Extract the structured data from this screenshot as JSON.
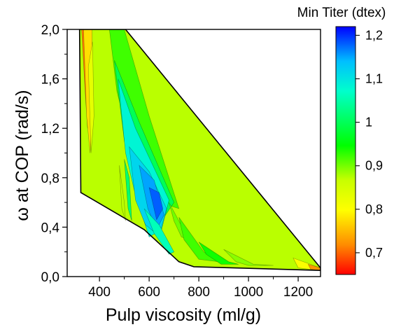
{
  "chart_data": {
    "type": "contour",
    "xlabel": "Pulp viscosity (ml/g)",
    "ylabel": "ω at COP (rad/s)",
    "colorbar_title": "Min Titer (dtex)",
    "xlim": [
      270,
      1290
    ],
    "ylim": [
      0.0,
      2.0
    ],
    "xticks": [
      400,
      600,
      800,
      1000,
      1200
    ],
    "xtick_labels": [
      "400",
      "600",
      "800",
      "1000",
      "1200"
    ],
    "yticks": [
      0.0,
      0.4,
      0.8,
      1.2,
      1.6,
      2.0
    ],
    "ytick_labels": [
      "0,0",
      "0,4",
      "0,8",
      "1,2",
      "1,6",
      "2,0"
    ],
    "colorbar_range": [
      0.65,
      1.22
    ],
    "colorbar_ticks": [
      0.7,
      0.8,
      0.9,
      1.0,
      1.1,
      1.2
    ],
    "colorbar_tick_labels": [
      "0,7",
      "0,8",
      "0,9",
      "1",
      "1,1",
      "1,2"
    ],
    "colorscale": [
      "#0000ff",
      "#00bfff",
      "#00ffcc",
      "#00ff00",
      "#c8ff00",
      "#ffff00",
      "#ff8c00",
      "#ff0000"
    ],
    "hull": [
      [
        320,
        2.0
      ],
      [
        505,
        2.0
      ],
      [
        1290,
        0.07
      ],
      [
        1290,
        0.05
      ],
      [
        780,
        0.08
      ],
      [
        720,
        0.12
      ],
      [
        580,
        0.38
      ],
      [
        325,
        0.68
      ]
    ],
    "regions": [
      {
        "level": 1.15,
        "polygon": [
          [
            328,
            2.0
          ],
          [
            355,
            2.0
          ],
          [
            360,
            1.6
          ],
          [
            352,
            1.2
          ],
          [
            342,
            1.5
          ]
        ]
      },
      {
        "level": 1.08,
        "polygon": [
          [
            336,
            2.0
          ],
          [
            370,
            2.0
          ],
          [
            372,
            1.4
          ],
          [
            362,
            1.0
          ],
          [
            348,
            1.3
          ]
        ]
      },
      {
        "level": 1.02,
        "polygon": [
          [
            355,
            1.7
          ],
          [
            372,
            1.9
          ],
          [
            378,
            1.3
          ],
          [
            366,
            1.0
          ]
        ]
      },
      {
        "level": 0.92,
        "polygon": [
          [
            440,
            2.0
          ],
          [
            500,
            2.0
          ],
          [
            600,
            1.3
          ],
          [
            720,
            0.55
          ],
          [
            640,
            0.6
          ],
          [
            520,
            1.1
          ],
          [
            470,
            1.5
          ]
        ]
      },
      {
        "level": 0.86,
        "polygon": [
          [
            460,
            1.75
          ],
          [
            560,
            1.25
          ],
          [
            700,
            0.6
          ],
          [
            640,
            0.42
          ],
          [
            560,
            0.65
          ],
          [
            500,
            1.1
          ]
        ]
      },
      {
        "level": 0.8,
        "polygon": [
          [
            475,
            1.6
          ],
          [
            545,
            1.2
          ],
          [
            680,
            0.62
          ],
          [
            650,
            0.38
          ],
          [
            600,
            0.32
          ],
          [
            540,
            0.7
          ],
          [
            505,
            1.0
          ]
        ]
      },
      {
        "level": 0.76,
        "polygon": [
          [
            520,
            1.05
          ],
          [
            600,
            0.85
          ],
          [
            670,
            0.55
          ],
          [
            640,
            0.33
          ],
          [
            585,
            0.42
          ],
          [
            545,
            0.62
          ]
        ]
      },
      {
        "level": 0.72,
        "polygon": [
          [
            560,
            0.9
          ],
          [
            620,
            0.78
          ],
          [
            660,
            0.5
          ],
          [
            630,
            0.38
          ],
          [
            595,
            0.55
          ]
        ]
      },
      {
        "level": 0.69,
        "polygon": [
          [
            600,
            0.72
          ],
          [
            640,
            0.68
          ],
          [
            655,
            0.55
          ],
          [
            630,
            0.46
          ]
        ]
      },
      {
        "level": 0.85,
        "polygon": [
          [
            500,
            0.95
          ],
          [
            520,
            0.8
          ],
          [
            530,
            0.45
          ],
          [
            515,
            0.55
          ]
        ]
      },
      {
        "level": 0.82,
        "polygon": [
          [
            580,
            0.55
          ],
          [
            640,
            0.42
          ],
          [
            700,
            0.2
          ],
          [
            680,
            0.18
          ],
          [
            620,
            0.35
          ]
        ]
      },
      {
        "level": 0.97,
        "polygon": [
          [
            480,
            0.9
          ],
          [
            500,
            0.6
          ],
          [
            505,
            0.45
          ],
          [
            490,
            0.55
          ]
        ]
      },
      {
        "level": 0.94,
        "polygon": [
          [
            680,
            0.6
          ],
          [
            720,
            0.45
          ],
          [
            760,
            0.3
          ],
          [
            730,
            0.32
          ],
          [
            700,
            0.45
          ]
        ]
      },
      {
        "level": 0.92,
        "polygon": [
          [
            720,
            0.48
          ],
          [
            820,
            0.2
          ],
          [
            880,
            0.12
          ],
          [
            800,
            0.14
          ],
          [
            740,
            0.3
          ]
        ]
      },
      {
        "level": 0.9,
        "polygon": [
          [
            800,
            0.28
          ],
          [
            920,
            0.12
          ],
          [
            960,
            0.1
          ],
          [
            890,
            0.1
          ],
          [
            830,
            0.18
          ]
        ]
      },
      {
        "level": 0.95,
        "polygon": [
          [
            900,
            0.22
          ],
          [
            1020,
            0.1
          ],
          [
            1100,
            0.09
          ],
          [
            1000,
            0.09
          ],
          [
            950,
            0.12
          ]
        ]
      },
      {
        "level": 1.05,
        "polygon": [
          [
            1180,
            0.15
          ],
          [
            1290,
            0.07
          ],
          [
            1290,
            0.05
          ],
          [
            1200,
            0.07
          ]
        ]
      },
      {
        "level": 1.13,
        "polygon": [
          [
            1240,
            0.1
          ],
          [
            1290,
            0.07
          ],
          [
            1290,
            0.05
          ],
          [
            1250,
            0.06
          ]
        ]
      }
    ]
  }
}
